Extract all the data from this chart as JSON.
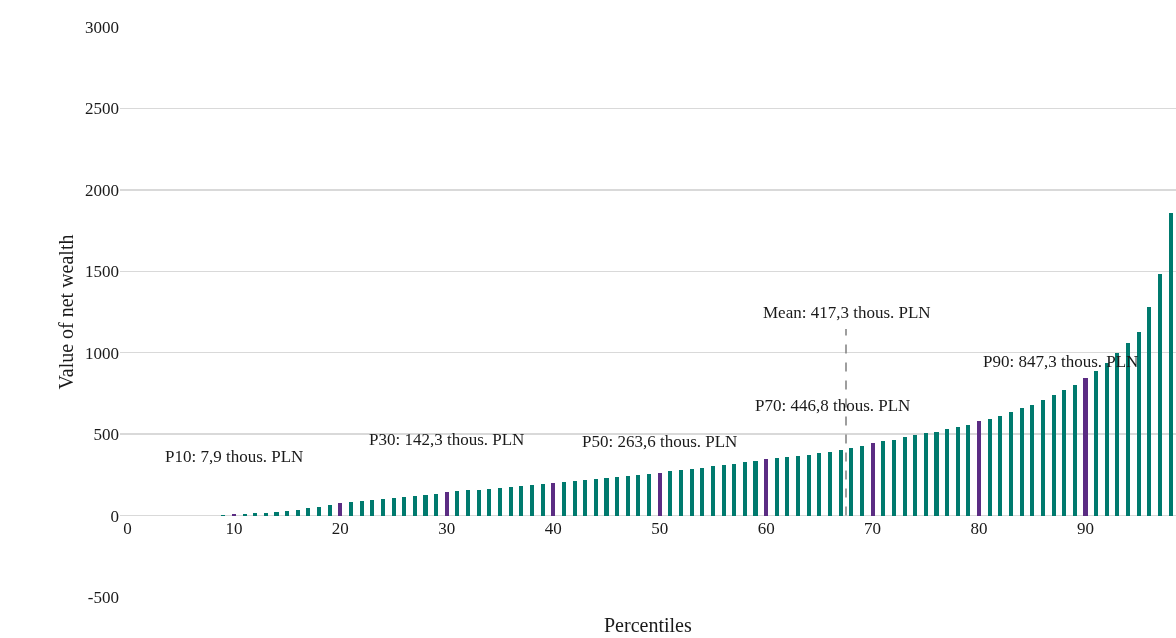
{
  "chart_data": {
    "type": "bar",
    "xlabel": "Percentiles",
    "ylabel": "Value of net wealth",
    "x": [
      1,
      2,
      3,
      4,
      5,
      6,
      7,
      8,
      9,
      10,
      11,
      12,
      13,
      14,
      15,
      16,
      17,
      18,
      19,
      20,
      21,
      22,
      23,
      24,
      25,
      26,
      27,
      28,
      29,
      30,
      31,
      32,
      33,
      34,
      35,
      36,
      37,
      38,
      39,
      40,
      41,
      42,
      43,
      44,
      45,
      46,
      47,
      48,
      49,
      50,
      51,
      52,
      53,
      54,
      55,
      56,
      57,
      58,
      59,
      60,
      61,
      62,
      63,
      64,
      65,
      66,
      67,
      68,
      69,
      70,
      71,
      72,
      73,
      74,
      75,
      76,
      77,
      78,
      79,
      80,
      81,
      82,
      83,
      84,
      85,
      86,
      87,
      88,
      89,
      90,
      91,
      92,
      93,
      94,
      95,
      96,
      97,
      98
    ],
    "values": [
      -5,
      0,
      0,
      0,
      0,
      0,
      0,
      0,
      5,
      7.9,
      11,
      14,
      18,
      24,
      30,
      37,
      44,
      52,
      64,
      80,
      86,
      92,
      98,
      104,
      110,
      116,
      122,
      128,
      134,
      142.3,
      148,
      154,
      160,
      166,
      172,
      178,
      184,
      190,
      196,
      202,
      208,
      214,
      220,
      226,
      232,
      238,
      244,
      250,
      256,
      263.6,
      271,
      279,
      287,
      295,
      303,
      311,
      319,
      328,
      337,
      345,
      352,
      359,
      366,
      374,
      382,
      392,
      404,
      414,
      430,
      446.8,
      457,
      467,
      482,
      492,
      504,
      514,
      529,
      541,
      559,
      580,
      596,
      612,
      635,
      659,
      682,
      712,
      739,
      771,
      804,
      847.3,
      888,
      937,
      998,
      1059,
      1130,
      1280,
      1485,
      1860
    ],
    "colors": [
      "#007a6e",
      "#007a6e",
      "#007a6e",
      "#007a6e",
      "#007a6e",
      "#007a6e",
      "#007a6e",
      "#007a6e",
      "#007a6e",
      "#5b2c83",
      "#007a6e",
      "#007a6e",
      "#007a6e",
      "#007a6e",
      "#007a6e",
      "#007a6e",
      "#007a6e",
      "#007a6e",
      "#007a6e",
      "#5b2c83",
      "#007a6e",
      "#007a6e",
      "#007a6e",
      "#007a6e",
      "#007a6e",
      "#007a6e",
      "#007a6e",
      "#007a6e",
      "#007a6e",
      "#5b2c83",
      "#007a6e",
      "#007a6e",
      "#007a6e",
      "#007a6e",
      "#007a6e",
      "#007a6e",
      "#007a6e",
      "#007a6e",
      "#007a6e",
      "#5b2c83",
      "#007a6e",
      "#007a6e",
      "#007a6e",
      "#007a6e",
      "#007a6e",
      "#007a6e",
      "#007a6e",
      "#007a6e",
      "#007a6e",
      "#5b2c83",
      "#007a6e",
      "#007a6e",
      "#007a6e",
      "#007a6e",
      "#007a6e",
      "#007a6e",
      "#007a6e",
      "#007a6e",
      "#007a6e",
      "#5b2c83",
      "#007a6e",
      "#007a6e",
      "#007a6e",
      "#007a6e",
      "#007a6e",
      "#007a6e",
      "#007a6e",
      "#007a6e",
      "#007a6e",
      "#5b2c83",
      "#007a6e",
      "#007a6e",
      "#007a6e",
      "#007a6e",
      "#007a6e",
      "#007a6e",
      "#007a6e",
      "#007a6e",
      "#007a6e",
      "#5b2c83",
      "#007a6e",
      "#007a6e",
      "#007a6e",
      "#007a6e",
      "#007a6e",
      "#007a6e",
      "#007a6e",
      "#007a6e",
      "#007a6e",
      "#5b2c83",
      "#007a6e",
      "#007a6e",
      "#007a6e",
      "#007a6e",
      "#007a6e",
      "#007a6e",
      "#007a6e",
      "#007a6e"
    ],
    "xlim": [
      -0.7,
      98.5
    ],
    "xticks": [
      0,
      10,
      20,
      30,
      40,
      50,
      60,
      70,
      80,
      90
    ],
    "ylim": [
      -500,
      3000
    ],
    "yticks": [
      -500,
      0,
      500,
      1000,
      1500,
      2000,
      2500,
      3000
    ],
    "grid": "y",
    "ref_lines": [
      {
        "axis": "x",
        "value": 67.5,
        "color": "#7f7f7f",
        "line_style": "dashed"
      }
    ],
    "annotations": [
      "Mean: 417,3 thous. PLN",
      {
        "text": "P10: 7,9 thous. PLN",
        "x": 10,
        "y": 7.9
      },
      {
        "text": "P30: 142,3 thous. PLN",
        "x": 30,
        "y": 142.3
      },
      {
        "text": "P50: 263,6 thous. PLN",
        "x": 50,
        "y": 263.6
      },
      {
        "text": "P70: 446,8 thous. PLN",
        "x": 70,
        "y": 446.8
      },
      {
        "text": "P90: 847,3 thous. PLN",
        "x": 90,
        "y": 847.3
      }
    ]
  }
}
